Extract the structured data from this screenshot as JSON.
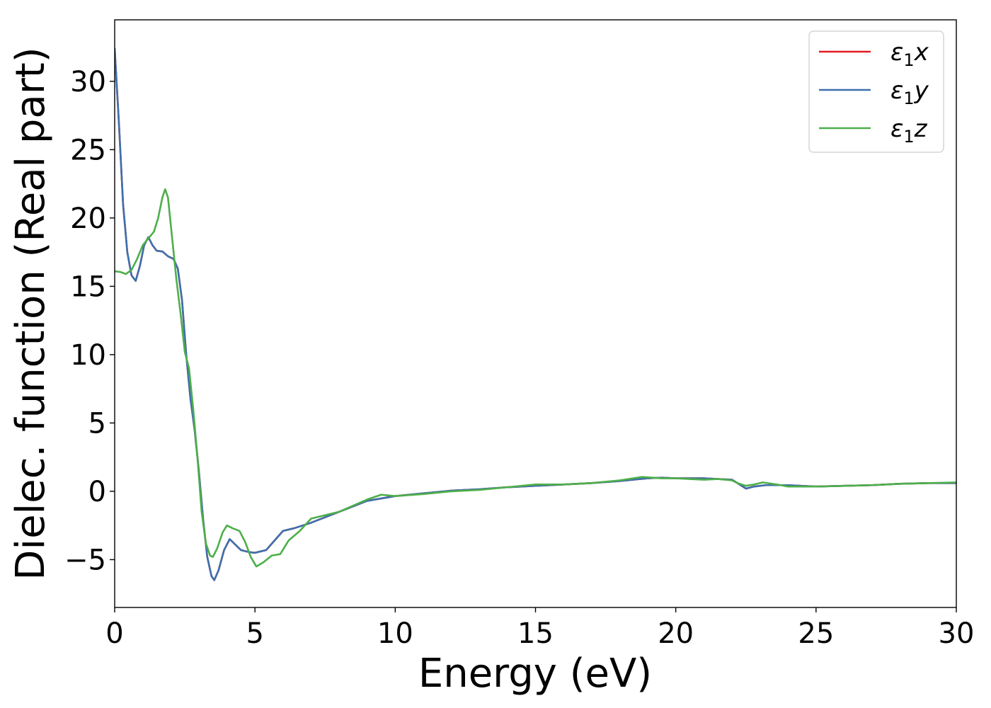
{
  "chart_data": {
    "type": "line",
    "xlabel": "Energy (eV)",
    "ylabel": "Dielec. function (Real part)",
    "xlim": [
      0,
      30
    ],
    "ylim": [
      -8.5,
      34.5
    ],
    "x_ticks": [
      0,
      5,
      10,
      15,
      20,
      25,
      30
    ],
    "y_ticks": [
      -5,
      0,
      5,
      10,
      15,
      20,
      25,
      30
    ],
    "x_tick_labels": [
      "0",
      "5",
      "10",
      "15",
      "20",
      "25",
      "30"
    ],
    "y_tick_labels": [
      "−5",
      "0",
      "5",
      "10",
      "15",
      "20",
      "25",
      "30"
    ],
    "grid": false,
    "legend_position": "top-right",
    "series": [
      {
        "name": "ε1x",
        "legend": {
          "symbol": "ε",
          "sub": "1",
          "suffix": "x"
        },
        "color": "#e41a1c",
        "points": [
          [
            0,
            32.4
          ],
          [
            0.15,
            27
          ],
          [
            0.3,
            21
          ],
          [
            0.45,
            17.5
          ],
          [
            0.6,
            15.8
          ],
          [
            0.75,
            15.4
          ],
          [
            0.9,
            16.5
          ],
          [
            1.05,
            18.0
          ],
          [
            1.2,
            18.6
          ],
          [
            1.35,
            18.0
          ],
          [
            1.5,
            17.6
          ],
          [
            1.7,
            17.55
          ],
          [
            1.9,
            17.2
          ],
          [
            2.1,
            17.0
          ],
          [
            2.25,
            16.3
          ],
          [
            2.4,
            14
          ],
          [
            2.55,
            10
          ],
          [
            2.7,
            6.8
          ],
          [
            2.85,
            4.5
          ],
          [
            3.0,
            1.5
          ],
          [
            3.15,
            -2
          ],
          [
            3.3,
            -4.8
          ],
          [
            3.45,
            -6.2
          ],
          [
            3.55,
            -6.5
          ],
          [
            3.7,
            -5.8
          ],
          [
            3.9,
            -4.3
          ],
          [
            4.1,
            -3.5
          ],
          [
            4.3,
            -3.9
          ],
          [
            4.5,
            -4.3
          ],
          [
            4.8,
            -4.45
          ],
          [
            5.0,
            -4.5
          ],
          [
            5.4,
            -4.3
          ],
          [
            5.7,
            -3.6
          ],
          [
            6.0,
            -2.9
          ],
          [
            6.4,
            -2.7
          ],
          [
            7.0,
            -2.3
          ],
          [
            8.0,
            -1.5
          ],
          [
            9.0,
            -0.7
          ],
          [
            10.0,
            -0.35
          ],
          [
            11.0,
            -0.15
          ],
          [
            12.0,
            0.05
          ],
          [
            13.0,
            0.15
          ],
          [
            14.0,
            0.3
          ],
          [
            15.0,
            0.4
          ],
          [
            16.0,
            0.5
          ],
          [
            17.0,
            0.6
          ],
          [
            18.0,
            0.75
          ],
          [
            19.0,
            0.95
          ],
          [
            19.5,
            1.0
          ],
          [
            20.0,
            0.95
          ],
          [
            20.5,
            0.95
          ],
          [
            21.0,
            0.95
          ],
          [
            21.5,
            0.9
          ],
          [
            22.0,
            0.85
          ],
          [
            22.2,
            0.6
          ],
          [
            22.5,
            0.2
          ],
          [
            22.8,
            0.35
          ],
          [
            23.2,
            0.45
          ],
          [
            24.0,
            0.45
          ],
          [
            25.0,
            0.35
          ],
          [
            26.0,
            0.4
          ],
          [
            27.0,
            0.45
          ],
          [
            28.0,
            0.55
          ],
          [
            29.0,
            0.6
          ],
          [
            30.0,
            0.6
          ]
        ]
      },
      {
        "name": "ε1y",
        "legend": {
          "symbol": "ε",
          "sub": "1",
          "suffix": "y"
        },
        "color": "#3e70ad",
        "points": [
          [
            0,
            32.4
          ],
          [
            0.15,
            27
          ],
          [
            0.3,
            21
          ],
          [
            0.45,
            17.5
          ],
          [
            0.6,
            15.8
          ],
          [
            0.75,
            15.4
          ],
          [
            0.9,
            16.5
          ],
          [
            1.05,
            18.0
          ],
          [
            1.2,
            18.6
          ],
          [
            1.35,
            18.0
          ],
          [
            1.5,
            17.6
          ],
          [
            1.7,
            17.55
          ],
          [
            1.9,
            17.2
          ],
          [
            2.1,
            17.0
          ],
          [
            2.25,
            16.3
          ],
          [
            2.4,
            14
          ],
          [
            2.55,
            10
          ],
          [
            2.7,
            6.8
          ],
          [
            2.85,
            4.5
          ],
          [
            3.0,
            1.5
          ],
          [
            3.15,
            -2
          ],
          [
            3.3,
            -4.8
          ],
          [
            3.45,
            -6.2
          ],
          [
            3.55,
            -6.5
          ],
          [
            3.7,
            -5.8
          ],
          [
            3.9,
            -4.3
          ],
          [
            4.1,
            -3.5
          ],
          [
            4.3,
            -3.9
          ],
          [
            4.5,
            -4.3
          ],
          [
            4.8,
            -4.45
          ],
          [
            5.0,
            -4.5
          ],
          [
            5.4,
            -4.3
          ],
          [
            5.7,
            -3.6
          ],
          [
            6.0,
            -2.9
          ],
          [
            6.4,
            -2.7
          ],
          [
            7.0,
            -2.3
          ],
          [
            8.0,
            -1.5
          ],
          [
            9.0,
            -0.7
          ],
          [
            10.0,
            -0.35
          ],
          [
            11.0,
            -0.15
          ],
          [
            12.0,
            0.05
          ],
          [
            13.0,
            0.15
          ],
          [
            14.0,
            0.3
          ],
          [
            15.0,
            0.4
          ],
          [
            16.0,
            0.5
          ],
          [
            17.0,
            0.6
          ],
          [
            18.0,
            0.75
          ],
          [
            19.0,
            0.95
          ],
          [
            19.5,
            1.0
          ],
          [
            20.0,
            0.95
          ],
          [
            20.5,
            0.95
          ],
          [
            21.0,
            0.95
          ],
          [
            21.5,
            0.9
          ],
          [
            22.0,
            0.85
          ],
          [
            22.2,
            0.6
          ],
          [
            22.5,
            0.2
          ],
          [
            22.8,
            0.35
          ],
          [
            23.2,
            0.45
          ],
          [
            24.0,
            0.45
          ],
          [
            25.0,
            0.35
          ],
          [
            26.0,
            0.4
          ],
          [
            27.0,
            0.45
          ],
          [
            28.0,
            0.55
          ],
          [
            29.0,
            0.6
          ],
          [
            30.0,
            0.6
          ]
        ]
      },
      {
        "name": "ε1z",
        "legend": {
          "symbol": "ε",
          "sub": "1",
          "suffix": "z"
        },
        "color": "#4daf4a",
        "points": [
          [
            0,
            16.1
          ],
          [
            0.2,
            16.05
          ],
          [
            0.4,
            15.9
          ],
          [
            0.6,
            16.2
          ],
          [
            0.8,
            17.0
          ],
          [
            1.0,
            18.0
          ],
          [
            1.2,
            18.5
          ],
          [
            1.4,
            19.0
          ],
          [
            1.55,
            20.0
          ],
          [
            1.7,
            21.5
          ],
          [
            1.8,
            22.1
          ],
          [
            1.9,
            21.5
          ],
          [
            2.0,
            19.5
          ],
          [
            2.1,
            17.5
          ],
          [
            2.2,
            15.5
          ],
          [
            2.35,
            13.0
          ],
          [
            2.5,
            10.2
          ],
          [
            2.65,
            9.0
          ],
          [
            2.8,
            6.0
          ],
          [
            2.95,
            2.5
          ],
          [
            3.1,
            -1.5
          ],
          [
            3.25,
            -3.8
          ],
          [
            3.4,
            -4.7
          ],
          [
            3.5,
            -4.8
          ],
          [
            3.65,
            -4.2
          ],
          [
            3.85,
            -3.0
          ],
          [
            4.0,
            -2.5
          ],
          [
            4.2,
            -2.7
          ],
          [
            4.45,
            -2.9
          ],
          [
            4.65,
            -3.7
          ],
          [
            4.85,
            -4.8
          ],
          [
            5.05,
            -5.5
          ],
          [
            5.3,
            -5.2
          ],
          [
            5.6,
            -4.7
          ],
          [
            5.9,
            -4.6
          ],
          [
            6.2,
            -3.6
          ],
          [
            6.6,
            -2.9
          ],
          [
            7.0,
            -2.0
          ],
          [
            8.0,
            -1.5
          ],
          [
            9.0,
            -0.6
          ],
          [
            9.5,
            -0.25
          ],
          [
            10.0,
            -0.35
          ],
          [
            11.0,
            -0.2
          ],
          [
            12.0,
            0.0
          ],
          [
            13.0,
            0.1
          ],
          [
            14.0,
            0.3
          ],
          [
            15.0,
            0.5
          ],
          [
            16.0,
            0.5
          ],
          [
            17.0,
            0.6
          ],
          [
            18.0,
            0.8
          ],
          [
            18.8,
            1.05
          ],
          [
            19.5,
            0.95
          ],
          [
            20.0,
            0.95
          ],
          [
            20.5,
            0.9
          ],
          [
            21.0,
            0.85
          ],
          [
            21.5,
            0.9
          ],
          [
            22.0,
            0.8
          ],
          [
            22.2,
            0.6
          ],
          [
            22.5,
            0.4
          ],
          [
            22.8,
            0.5
          ],
          [
            23.1,
            0.65
          ],
          [
            23.6,
            0.5
          ],
          [
            24.0,
            0.35
          ],
          [
            25.0,
            0.35
          ],
          [
            26.0,
            0.4
          ],
          [
            27.0,
            0.45
          ],
          [
            28.0,
            0.55
          ],
          [
            29.0,
            0.6
          ],
          [
            30.0,
            0.65
          ]
        ]
      }
    ]
  }
}
